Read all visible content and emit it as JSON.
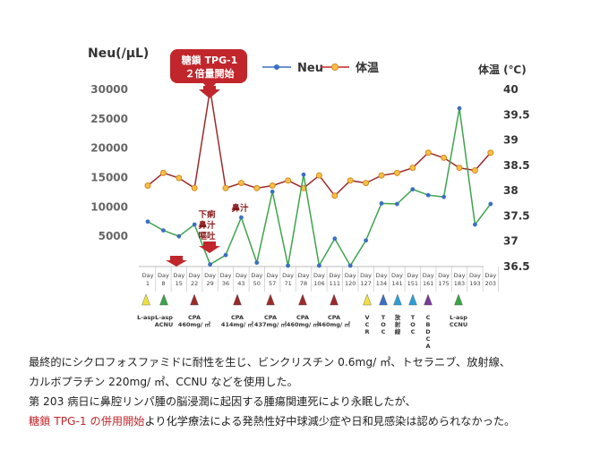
{
  "chart_data": {
    "type": "line",
    "ylabel_left": "Neu(/μL)",
    "ylabel_right": "体温 (℃)",
    "left_ticks": [
      "30000",
      "25000",
      "20000",
      "15000",
      "10000",
      "5000"
    ],
    "right_ticks": [
      "40",
      "39.5",
      "39",
      "38.5",
      "38",
      "37.5",
      "37",
      "36.5"
    ],
    "ylim_left": [
      0,
      30000
    ],
    "ylim_right": [
      36.5,
      40
    ],
    "categories": [
      "Day 1",
      "Day 8",
      "Day 15",
      "Day 22",
      "Day 29",
      "Day 36",
      "Day 43",
      "Day 50",
      "Day 57",
      "Day 71",
      "Day 78",
      "Day 106",
      "Day 111",
      "Day 120",
      "Day 127",
      "Day 134",
      "Day 141",
      "Day 151",
      "Day 161",
      "Day 175",
      "Day 183",
      "Day 193",
      "Day 203"
    ],
    "category_lines": [
      [
        "Day",
        "1"
      ],
      [
        "Day",
        "8"
      ],
      [
        "Day",
        "15"
      ],
      [
        "Day",
        "22"
      ],
      [
        "Day",
        "29"
      ],
      [
        "Day",
        "36"
      ],
      [
        "Day",
        "43"
      ],
      [
        "Day",
        "50"
      ],
      [
        "Day",
        "57"
      ],
      [
        "Day",
        "71"
      ],
      [
        "Day",
        "78"
      ],
      [
        "Day",
        "106"
      ],
      [
        "Day",
        "111"
      ],
      [
        "Day",
        "120"
      ],
      [
        "Day",
        "127"
      ],
      [
        "Day",
        "134"
      ],
      [
        "Day",
        "141"
      ],
      [
        "Day",
        "151"
      ],
      [
        "Day",
        "161"
      ],
      [
        "Day",
        "175"
      ],
      [
        "Day",
        "183"
      ],
      [
        "Day",
        "193"
      ],
      [
        "Day",
        "203"
      ]
    ],
    "series": [
      {
        "name": "Neu",
        "axis": "left",
        "color": "#3fa34d",
        "values": [
          7500,
          6000,
          5000,
          7000,
          200,
          1800,
          8200,
          500,
          12600,
          0,
          15500,
          0,
          4600,
          0,
          4300,
          10600,
          10500,
          13000,
          12000,
          11700,
          26800,
          7000,
          10500
        ]
      },
      {
        "name": "体温",
        "axis": "right",
        "color": "#8b1a1a",
        "values": [
          38.1,
          38.35,
          38.25,
          38.05,
          40.0,
          38.05,
          38.15,
          38.05,
          38.1,
          38.2,
          38.05,
          38.3,
          37.9,
          38.2,
          38.15,
          38.3,
          38.35,
          38.45,
          38.75,
          38.65,
          38.45,
          38.4,
          38.75
        ]
      }
    ],
    "legend_position": "top",
    "annotations": {
      "drug_callout": [
        "糖鎖 TPG-1",
        "２倍量開始"
      ],
      "side_effects": [
        "下痢",
        "鼻汁",
        "嘔吐"
      ],
      "side_effect_single": "鼻汁"
    },
    "treatments": [
      {
        "label": [
          "L-asp"
        ],
        "color": "#f0e040"
      },
      {
        "label": [
          "L-asp",
          "ACNU"
        ],
        "color": "#3aa34a"
      },
      {
        "label": [
          "CPA",
          "460mg/ ㎡"
        ],
        "color": "#9b2a2a"
      },
      {
        "label": [
          "CPA",
          "414mg/ ㎡"
        ],
        "color": "#9b2a2a"
      },
      {
        "label": [
          "CPA",
          "437mg/ ㎡"
        ],
        "color": "#9b2a2a"
      },
      {
        "label": [
          "CPA",
          "460mg/ ㎡"
        ],
        "color": "#9b2a2a"
      },
      {
        "label": [
          "CPA",
          "460mg/ ㎡"
        ],
        "color": "#9b2a2a"
      },
      {
        "label": [
          "V",
          "C",
          "R"
        ],
        "color": "#f0e040"
      },
      {
        "label": [
          "T",
          "O",
          "C"
        ],
        "color": "#3b6fc2"
      },
      {
        "label": [
          "放",
          "射",
          "線"
        ],
        "color": "#2d9fd4"
      },
      {
        "label": [
          "T",
          "O",
          "C"
        ],
        "color": "#2d9fd4"
      },
      {
        "label": [
          "C",
          "B",
          "D",
          "C",
          "A"
        ],
        "color": "#7a3a9c"
      },
      {
        "label": [
          "L-asp",
          "CCNU"
        ],
        "color": "#3aa34a"
      }
    ]
  },
  "caption": {
    "line1": "最終的にシクロフォスファミドに耐性を生じ、ビンクリスチン 0.6mg/ ㎡、トセラニブ、放射線、",
    "line2": "カルボプラチン 220mg/ ㎡、CCNU などを使用した。",
    "line3": "第 203 病日に鼻腔リンパ腫の脳浸潤に起因する腫瘍関連死により永眠したが、",
    "line4_highlight": "糖鎖 TPG-1 の併用開始",
    "line4_rest": "より化学療法による発熱性好中球減少症や日和見感染は認められなかった。"
  }
}
